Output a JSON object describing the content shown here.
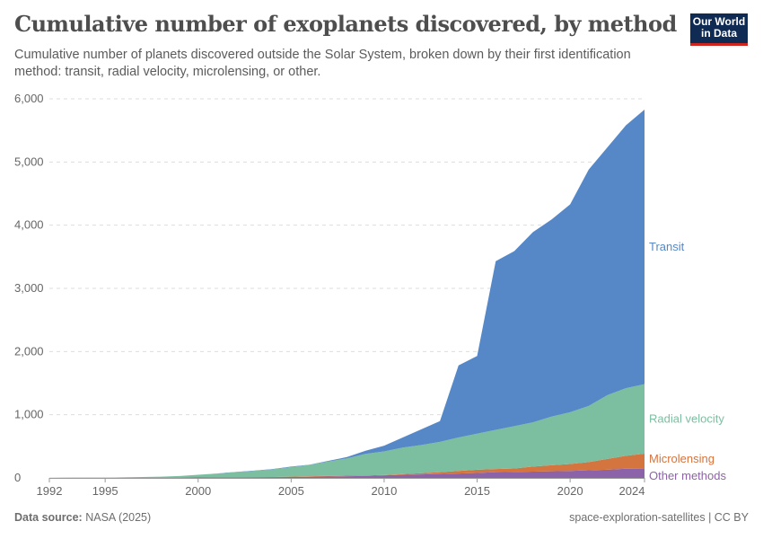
{
  "title": "Cumulative number of exoplanets discovered, by method",
  "subtitle": "Cumulative number of planets discovered outside the Solar System, broken down by their first identification method: transit, radial velocity, microlensing, or other.",
  "logo": {
    "line1": "Our World",
    "line2": "in Data"
  },
  "footer": {
    "source_label": "Data source:",
    "source": "NASA (2025)",
    "right": "space-exploration-satellites | CC BY"
  },
  "chart_data": {
    "type": "area",
    "stacked": true,
    "x": [
      1992,
      1993,
      1994,
      1995,
      1996,
      1997,
      1998,
      1999,
      2000,
      2001,
      2002,
      2003,
      2004,
      2005,
      2006,
      2007,
      2008,
      2009,
      2010,
      2011,
      2012,
      2013,
      2014,
      2015,
      2016,
      2017,
      2018,
      2019,
      2020,
      2021,
      2022,
      2023,
      2024
    ],
    "xticks": [
      "1992",
      "1995",
      "2000",
      "2005",
      "2010",
      "2015",
      "2020",
      "2024"
    ],
    "yticks": [
      "0",
      "1,000",
      "2,000",
      "3,000",
      "4,000",
      "5,000",
      "6,000"
    ],
    "ylim": [
      0,
      6000
    ],
    "grid": "horizontal dashed",
    "legend": "right, inline labels",
    "series": [
      {
        "name": "Other methods",
        "color": "#8c63a8",
        "values": [
          2,
          3,
          3,
          4,
          4,
          5,
          5,
          6,
          7,
          8,
          9,
          10,
          12,
          15,
          18,
          22,
          26,
          30,
          40,
          48,
          55,
          62,
          70,
          78,
          90,
          95,
          100,
          105,
          110,
          120,
          130,
          145,
          147
        ]
      },
      {
        "name": "Microlensing",
        "color": "#d4743f",
        "values": [
          0,
          0,
          0,
          0,
          0,
          0,
          0,
          0,
          0,
          0,
          1,
          2,
          3,
          5,
          8,
          10,
          9,
          10,
          5,
          12,
          20,
          28,
          40,
          52,
          50,
          55,
          80,
          95,
          110,
          130,
          170,
          205,
          237
        ]
      },
      {
        "name": "Radial velocity",
        "color": "#7bbfa0",
        "values": [
          0,
          1,
          2,
          1,
          6,
          10,
          15,
          25,
          43,
          60,
          80,
          98,
          120,
          150,
          180,
          228,
          275,
          340,
          375,
          420,
          445,
          480,
          530,
          570,
          620,
          670,
          700,
          770,
          820,
          890,
          1010,
          1070,
          1100
        ]
      },
      {
        "name": "Transit",
        "color": "#5688c7",
        "values": [
          0,
          0,
          0,
          0,
          0,
          0,
          0,
          0,
          0,
          2,
          5,
          5,
          5,
          10,
          4,
          10,
          20,
          50,
          90,
          160,
          250,
          330,
          1140,
          1230,
          2670,
          2770,
          3010,
          3120,
          3290,
          3740,
          3920,
          4160,
          4346
        ]
      }
    ]
  }
}
